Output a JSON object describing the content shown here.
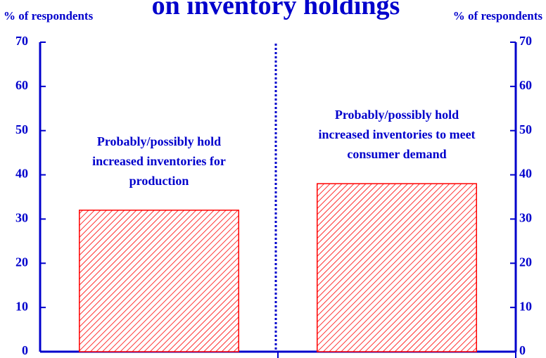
{
  "chart_data": {
    "type": "bar",
    "title": "on inventory holdings",
    "y_label": "% of respondents",
    "y2_label": "% of respondents",
    "categories": [
      "Probably/possibly hold increased inventories for production",
      "Probably/possibly hold increased inventories to meet consumer demand"
    ],
    "values": [
      32,
      38
    ],
    "color": "#ff0000",
    "ylim": [
      0,
      70
    ],
    "yticks": [
      0,
      10,
      20,
      30,
      40,
      50,
      60,
      70
    ],
    "y2lim": [
      0,
      70
    ],
    "y2ticks": [
      0,
      10,
      20,
      30,
      40,
      50,
      60,
      70
    ],
    "grid": false
  }
}
